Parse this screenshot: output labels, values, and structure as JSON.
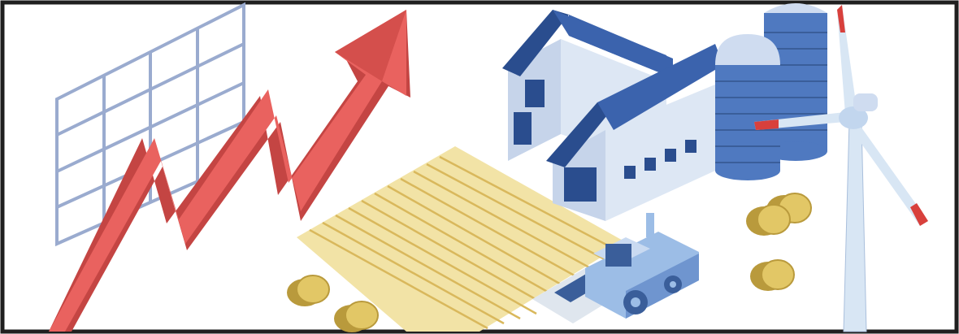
{
  "illustration": {
    "subject": "",
    "palette": {
      "frame": "#1f1f1f",
      "grid_line": "#9aabcf",
      "arrow_face": "#e9625f",
      "arrow_dark": "#c44543",
      "field_light": "#f2e3a6",
      "field_stripe": "#d9b85c",
      "barn_wall": "#dde7f4",
      "barn_roof": "#3b63ad",
      "barn_roof_dark": "#2a4d8e",
      "silo": "#4f79c0",
      "silo_dome": "#cfdcf0",
      "hay": "#e2c766",
      "hay_dark": "#b99a3c",
      "turbine": "#d8e6f4",
      "turbine_tip": "#d8403c",
      "harvester": "#9cbde6",
      "harvester_dark": "#3a5e9a"
    }
  }
}
